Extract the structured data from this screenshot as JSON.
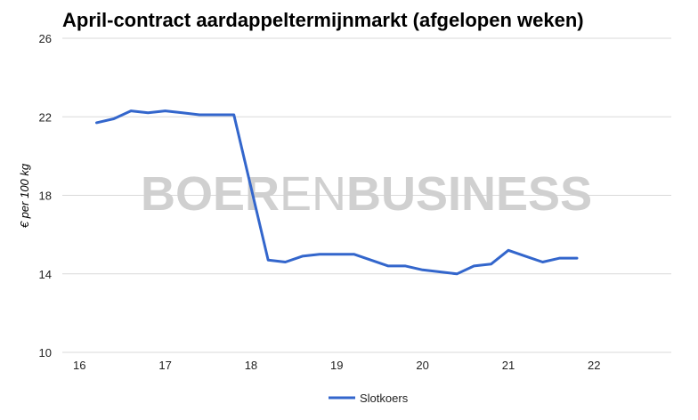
{
  "chart_data": {
    "type": "line",
    "title": "April-contract aardappeltermijnmarkt (afgelopen weken)",
    "ylabel": "€ per 100 kg",
    "xlabel": "",
    "xlim": [
      15.8,
      22.9
    ],
    "ylim": [
      10,
      26
    ],
    "xticks": [
      "16",
      "17",
      "18",
      "19",
      "20",
      "21",
      "22"
    ],
    "yticks": [
      "10",
      "14",
      "18",
      "22",
      "26"
    ],
    "grid": true,
    "legend_position": "bottom",
    "watermark": "BOERENBUSINESS",
    "series": [
      {
        "name": "Slotkoers",
        "color": "#3366cc",
        "x": [
          16.2,
          16.4,
          16.6,
          16.8,
          17.0,
          17.2,
          17.4,
          17.6,
          17.8,
          18.2,
          18.4,
          18.6,
          18.8,
          19.0,
          19.2,
          19.4,
          19.6,
          19.8,
          20.0,
          20.2,
          20.4,
          20.6,
          20.8,
          21.0,
          21.2,
          21.4,
          21.6,
          21.8
        ],
        "y": [
          21.7,
          21.9,
          22.3,
          22.2,
          22.3,
          22.2,
          22.1,
          22.1,
          22.1,
          14.7,
          14.6,
          14.9,
          15.0,
          15.0,
          15.0,
          14.7,
          14.4,
          14.4,
          14.2,
          14.1,
          14.0,
          14.4,
          14.5,
          15.2,
          14.9,
          14.6,
          14.8,
          14.8
        ]
      }
    ]
  }
}
